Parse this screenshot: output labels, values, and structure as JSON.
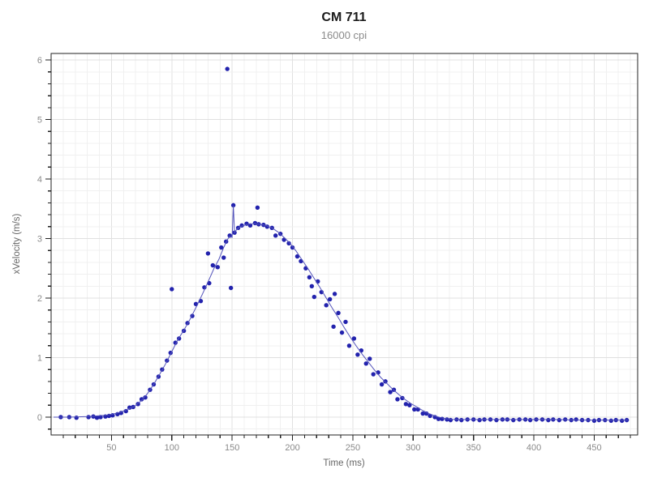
{
  "chart_data": {
    "type": "scatter",
    "title": "CM 711",
    "subtitle": "16000 cpi",
    "xlabel": "Time (ms)",
    "ylabel": "xVelocity (m/s)",
    "xlim": [
      0,
      486
    ],
    "ylim": [
      -0.3,
      6.11
    ],
    "x_major_ticks": [
      50,
      100,
      150,
      200,
      250,
      300,
      350,
      400,
      450
    ],
    "x_minor_step": 10,
    "y_major_ticks": [
      0,
      1,
      2,
      3,
      4,
      5,
      6
    ],
    "y_minor_step": 0.2,
    "grid": "minor and major gridlines on",
    "legend_position": "none",
    "series": [
      {
        "name": "xVelocity samples",
        "mark": "point",
        "color": "#2222ad",
        "points": [
          [
            8,
            0.0
          ],
          [
            15,
            0.0
          ],
          [
            21,
            -0.01
          ],
          [
            31,
            0.0
          ],
          [
            35,
            0.01
          ],
          [
            38,
            -0.01
          ],
          [
            41,
            0.0
          ],
          [
            45,
            0.01
          ],
          [
            48,
            0.02
          ],
          [
            51,
            0.03
          ],
          [
            55,
            0.05
          ],
          [
            58,
            0.07
          ],
          [
            62,
            0.1
          ],
          [
            65,
            0.16
          ],
          [
            68,
            0.17
          ],
          [
            72,
            0.22
          ],
          [
            75,
            0.3
          ],
          [
            78,
            0.33
          ],
          [
            82,
            0.46
          ],
          [
            85,
            0.55
          ],
          [
            89,
            0.68
          ],
          [
            92,
            0.8
          ],
          [
            96,
            0.95
          ],
          [
            99,
            1.08
          ],
          [
            100,
            2.15
          ],
          [
            103,
            1.25
          ],
          [
            106,
            1.32
          ],
          [
            110,
            1.45
          ],
          [
            113,
            1.58
          ],
          [
            117,
            1.7
          ],
          [
            120,
            1.9
          ],
          [
            124,
            1.95
          ],
          [
            127,
            2.18
          ],
          [
            130,
            2.75
          ],
          [
            131,
            2.25
          ],
          [
            134,
            2.55
          ],
          [
            138,
            2.52
          ],
          [
            141,
            2.85
          ],
          [
            143,
            2.68
          ],
          [
            145,
            2.95
          ],
          [
            146,
            5.85
          ],
          [
            148,
            3.05
          ],
          [
            149,
            2.17
          ],
          [
            151,
            3.56
          ],
          [
            152,
            3.1
          ],
          [
            155,
            3.18
          ],
          [
            158,
            3.22
          ],
          [
            162,
            3.25
          ],
          [
            165,
            3.22
          ],
          [
            169,
            3.26
          ],
          [
            171,
            3.52
          ],
          [
            172,
            3.24
          ],
          [
            176,
            3.23
          ],
          [
            179,
            3.2
          ],
          [
            183,
            3.18
          ],
          [
            186,
            3.05
          ],
          [
            190,
            3.08
          ],
          [
            193,
            2.98
          ],
          [
            197,
            2.92
          ],
          [
            200,
            2.85
          ],
          [
            204,
            2.7
          ],
          [
            207,
            2.62
          ],
          [
            211,
            2.5
          ],
          [
            214,
            2.35
          ],
          [
            216,
            2.2
          ],
          [
            218,
            2.02
          ],
          [
            221,
            2.28
          ],
          [
            224,
            2.1
          ],
          [
            228,
            1.88
          ],
          [
            231,
            1.98
          ],
          [
            234,
            1.52
          ],
          [
            235,
            2.07
          ],
          [
            238,
            1.75
          ],
          [
            241,
            1.42
          ],
          [
            244,
            1.6
          ],
          [
            247,
            1.2
          ],
          [
            251,
            1.32
          ],
          [
            254,
            1.05
          ],
          [
            257,
            1.12
          ],
          [
            261,
            0.9
          ],
          [
            264,
            0.98
          ],
          [
            267,
            0.72
          ],
          [
            271,
            0.75
          ],
          [
            274,
            0.55
          ],
          [
            277,
            0.6
          ],
          [
            281,
            0.42
          ],
          [
            284,
            0.46
          ],
          [
            287,
            0.3
          ],
          [
            291,
            0.32
          ],
          [
            294,
            0.22
          ],
          [
            297,
            0.2
          ],
          [
            301,
            0.13
          ],
          [
            304,
            0.13
          ],
          [
            308,
            0.06
          ],
          [
            311,
            0.06
          ],
          [
            314,
            0.02
          ],
          [
            318,
            0.0
          ],
          [
            321,
            -0.03
          ],
          [
            324,
            -0.03
          ],
          [
            328,
            -0.04
          ],
          [
            331,
            -0.05
          ],
          [
            336,
            -0.04
          ],
          [
            340,
            -0.05
          ],
          [
            345,
            -0.04
          ],
          [
            350,
            -0.04
          ],
          [
            355,
            -0.05
          ],
          [
            359,
            -0.04
          ],
          [
            364,
            -0.04
          ],
          [
            369,
            -0.05
          ],
          [
            374,
            -0.04
          ],
          [
            378,
            -0.04
          ],
          [
            383,
            -0.05
          ],
          [
            388,
            -0.04
          ],
          [
            393,
            -0.04
          ],
          [
            397,
            -0.05
          ],
          [
            402,
            -0.04
          ],
          [
            407,
            -0.04
          ],
          [
            412,
            -0.05
          ],
          [
            416,
            -0.04
          ],
          [
            421,
            -0.05
          ],
          [
            426,
            -0.04
          ],
          [
            431,
            -0.05
          ],
          [
            435,
            -0.04
          ],
          [
            440,
            -0.05
          ],
          [
            445,
            -0.05
          ],
          [
            450,
            -0.06
          ],
          [
            454,
            -0.05
          ],
          [
            459,
            -0.05
          ],
          [
            464,
            -0.06
          ],
          [
            468,
            -0.05
          ],
          [
            473,
            -0.06
          ],
          [
            477,
            -0.05
          ]
        ]
      },
      {
        "name": "xVelocity trace line",
        "mark": "line",
        "color": "#5353bb",
        "points": [
          [
            2,
            0.0
          ],
          [
            15,
            0.0
          ],
          [
            30,
            0.01
          ],
          [
            45,
            0.03
          ],
          [
            51,
            0.05
          ],
          [
            57,
            0.08
          ],
          [
            63,
            0.13
          ],
          [
            69,
            0.18
          ],
          [
            75,
            0.28
          ],
          [
            80,
            0.4
          ],
          [
            85,
            0.55
          ],
          [
            90,
            0.72
          ],
          [
            95,
            0.9
          ],
          [
            100,
            1.1
          ],
          [
            105,
            1.3
          ],
          [
            110,
            1.46
          ],
          [
            115,
            1.64
          ],
          [
            120,
            1.84
          ],
          [
            125,
            2.05
          ],
          [
            130,
            2.27
          ],
          [
            135,
            2.5
          ],
          [
            139,
            2.65
          ],
          [
            143,
            2.85
          ],
          [
            146,
            2.98
          ],
          [
            148,
            3.04
          ],
          [
            150,
            3.02
          ],
          [
            151,
            3.55
          ],
          [
            152,
            3.1
          ],
          [
            154,
            3.16
          ],
          [
            158,
            3.21
          ],
          [
            163,
            3.24
          ],
          [
            168,
            3.25
          ],
          [
            173,
            3.24
          ],
          [
            178,
            3.22
          ],
          [
            183,
            3.18
          ],
          [
            188,
            3.11
          ],
          [
            193,
            3.02
          ],
          [
            198,
            2.92
          ],
          [
            203,
            2.79
          ],
          [
            208,
            2.64
          ],
          [
            213,
            2.49
          ],
          [
            218,
            2.33
          ],
          [
            223,
            2.17
          ],
          [
            228,
            2.0
          ],
          [
            233,
            1.83
          ],
          [
            238,
            1.67
          ],
          [
            243,
            1.5
          ],
          [
            248,
            1.34
          ],
          [
            253,
            1.19
          ],
          [
            258,
            1.05
          ],
          [
            263,
            0.92
          ],
          [
            268,
            0.79
          ],
          [
            273,
            0.67
          ],
          [
            278,
            0.57
          ],
          [
            283,
            0.47
          ],
          [
            288,
            0.38
          ],
          [
            293,
            0.3
          ],
          [
            298,
            0.23
          ],
          [
            303,
            0.17
          ],
          [
            308,
            0.11
          ],
          [
            313,
            0.06
          ],
          [
            318,
            0.02
          ],
          [
            323,
            -0.01
          ],
          [
            328,
            -0.03
          ],
          [
            334,
            -0.04
          ],
          [
            345,
            -0.04
          ],
          [
            360,
            -0.04
          ],
          [
            375,
            -0.04
          ],
          [
            390,
            -0.04
          ],
          [
            405,
            -0.04
          ],
          [
            420,
            -0.04
          ],
          [
            435,
            -0.05
          ],
          [
            450,
            -0.05
          ],
          [
            465,
            -0.05
          ],
          [
            478,
            -0.05
          ]
        ]
      }
    ]
  },
  "colors": {
    "background": "#ffffff",
    "grid_minor": "#f0f0f0",
    "grid_major": "#e0e0e0",
    "axis": "#222222",
    "tick_label": "#8a8a8a",
    "axis_label": "#666666",
    "title": "#1a1a1a",
    "subtitle": "#8a8a8a",
    "point": "#2222ad",
    "line": "#5353bb"
  }
}
